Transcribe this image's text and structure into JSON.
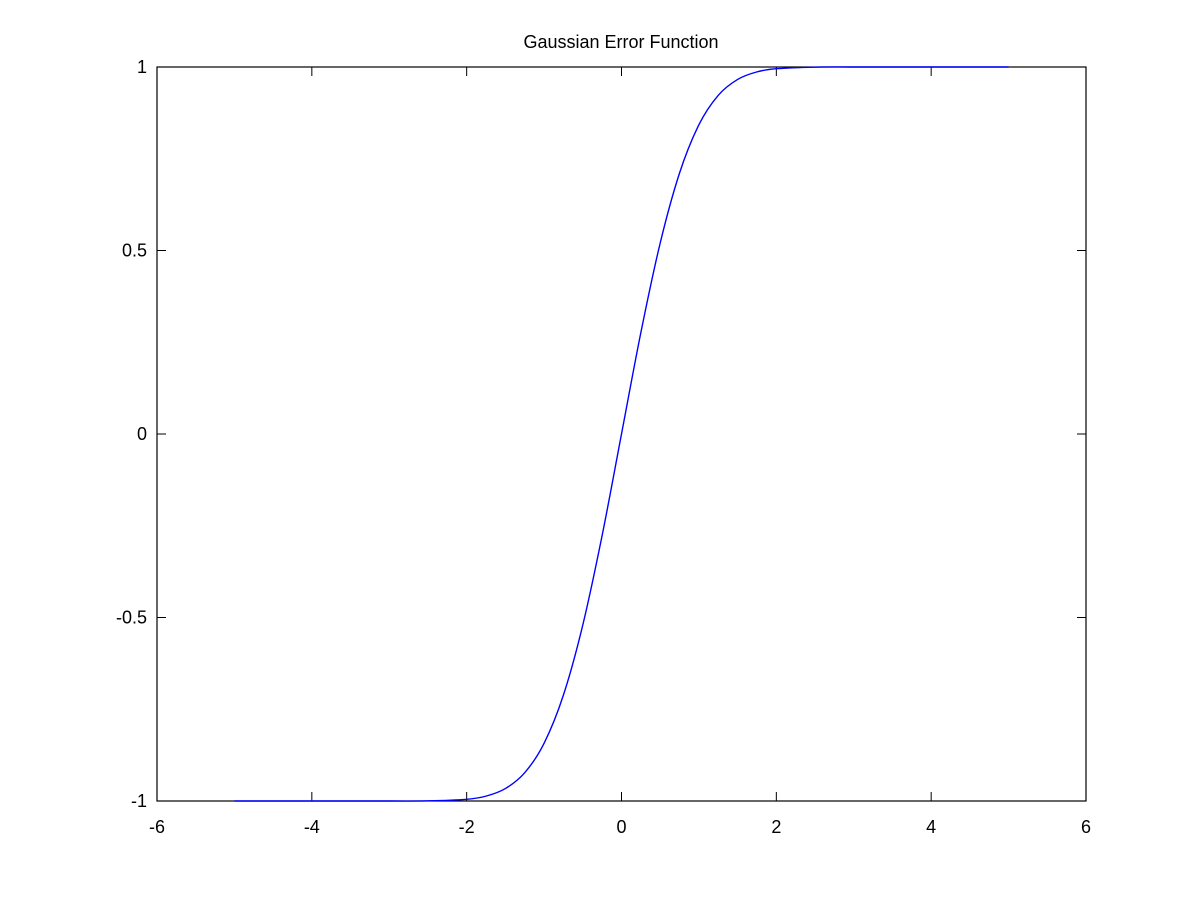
{
  "chart_data": {
    "type": "line",
    "title": "Gaussian Error Function",
    "xlabel": "",
    "ylabel": "",
    "xlim": [
      -6,
      6
    ],
    "ylim": [
      -1,
      1
    ],
    "x_ticks": [
      -6,
      -4,
      -2,
      0,
      2,
      4,
      6
    ],
    "x_tick_labels": [
      "-6",
      "-4",
      "-2",
      "0",
      "2",
      "4",
      "6"
    ],
    "y_ticks": [
      -1,
      -0.5,
      0,
      0.5,
      1
    ],
    "y_tick_labels": [
      "-1",
      "-0.5",
      "0",
      "0.5",
      "1"
    ],
    "grid": false,
    "legend": "none",
    "series": [
      {
        "color": "#0000ff",
        "x": [
          -5,
          -4,
          -3,
          -2.5,
          -2,
          -1.75,
          -1.5,
          -1.25,
          -1,
          -0.75,
          -0.5,
          -0.25,
          0,
          0.25,
          0.5,
          0.75,
          1,
          1.25,
          1.5,
          1.75,
          2,
          2.5,
          3,
          4,
          5
        ],
        "y": [
          -1,
          -1,
          -1,
          -0.9996,
          -0.9953,
          -0.9867,
          -0.9661,
          -0.9229,
          -0.8427,
          -0.7112,
          -0.5205,
          -0.2763,
          0,
          0.2763,
          0.5205,
          0.7112,
          0.8427,
          0.9229,
          0.9661,
          0.9867,
          0.9953,
          0.9996,
          1,
          1,
          1
        ]
      }
    ]
  }
}
